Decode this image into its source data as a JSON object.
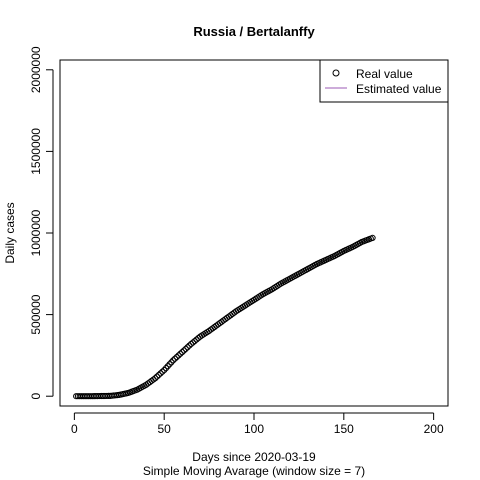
{
  "chart_data": {
    "type": "scatter",
    "title": "Russia / Bertalanffy",
    "xlabel": "Days since 2020-03-19",
    "xlabel2": "Simple Moving Avarage (window size = 7)",
    "ylabel": "Daily cases",
    "xlim": [
      -8,
      208
    ],
    "ylim": [
      -60000,
      2060000
    ],
    "x_ticks": [
      0,
      50,
      100,
      150,
      200
    ],
    "y_ticks": [
      0,
      500000,
      1000000,
      1500000,
      2000000
    ],
    "x_tick_labels": [
      "0",
      "50",
      "100",
      "150",
      "200"
    ],
    "y_tick_labels": [
      "0",
      "500000",
      "1000000",
      "1500000",
      "2000000"
    ],
    "grid": false,
    "legend": {
      "position": "top-right",
      "entries": [
        {
          "label": "Real value",
          "symbol": "circle",
          "color": "#000000"
        },
        {
          "label": "Estimated value",
          "symbol": "line",
          "color": "#9b59b6"
        }
      ]
    },
    "series": [
      {
        "name": "Real value",
        "color": "#000000",
        "x_start": 1,
        "x_end": 166,
        "points": [
          [
            1,
            0
          ],
          [
            10,
            200
          ],
          [
            20,
            2000
          ],
          [
            25,
            8000
          ],
          [
            30,
            20000
          ],
          [
            35,
            40000
          ],
          [
            40,
            70000
          ],
          [
            45,
            110000
          ],
          [
            50,
            160000
          ],
          [
            55,
            220000
          ],
          [
            60,
            270000
          ],
          [
            65,
            320000
          ],
          [
            70,
            365000
          ],
          [
            75,
            400000
          ],
          [
            80,
            440000
          ],
          [
            85,
            480000
          ],
          [
            90,
            520000
          ],
          [
            95,
            555000
          ],
          [
            100,
            590000
          ],
          [
            105,
            625000
          ],
          [
            110,
            655000
          ],
          [
            115,
            690000
          ],
          [
            120,
            720000
          ],
          [
            125,
            750000
          ],
          [
            130,
            780000
          ],
          [
            135,
            810000
          ],
          [
            140,
            835000
          ],
          [
            145,
            860000
          ],
          [
            150,
            890000
          ],
          [
            155,
            915000
          ],
          [
            160,
            945000
          ],
          [
            166,
            970000
          ]
        ]
      }
    ]
  }
}
